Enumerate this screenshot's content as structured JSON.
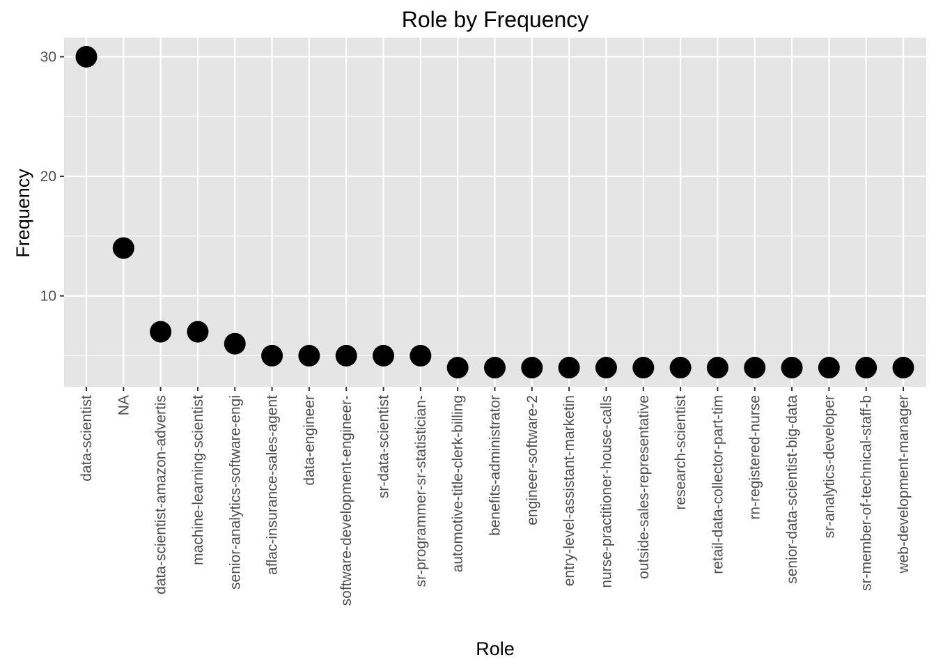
{
  "chart_data": {
    "type": "scatter",
    "title": "Role by Frequency",
    "xlabel": "Role",
    "ylabel": "Frequency",
    "categories": [
      "data-scientist",
      "NA",
      "data-scientist-amazon-advertis",
      "machine-learning-scientist",
      "senior-analytics-software-engi",
      "aflac-insurance-sales-agent",
      "data-engineer",
      "software-development-engineer-",
      "sr-data-scientist",
      "sr-programmer-sr-statistician-",
      "automotive-title-clerk-billing",
      "benefits-administrator",
      "engineer-software-2",
      "entry-level-assistant-marketin",
      "nurse-practitioner-house-calls",
      "outside-sales-representative",
      "research-scientist",
      "retail-data-collector-part-tim",
      "rn-registered-nurse",
      "senior-data-scientist-big-data",
      "sr-analytics-developer",
      "sr-member-of-technical-staff-b",
      "web-development-manager"
    ],
    "values": [
      30,
      14,
      7,
      7,
      6,
      5,
      5,
      5,
      5,
      5,
      4,
      4,
      4,
      4,
      4,
      4,
      4,
      4,
      4,
      4,
      4,
      4,
      4
    ],
    "yticks": [
      10,
      20,
      30
    ],
    "ylim": [
      2.4,
      31.6
    ],
    "grid": true,
    "colors": {
      "panel_background": "#e5e5e5",
      "grid": "#ffffff",
      "point": "#000000",
      "tick_text": "#4d4d4d"
    }
  }
}
